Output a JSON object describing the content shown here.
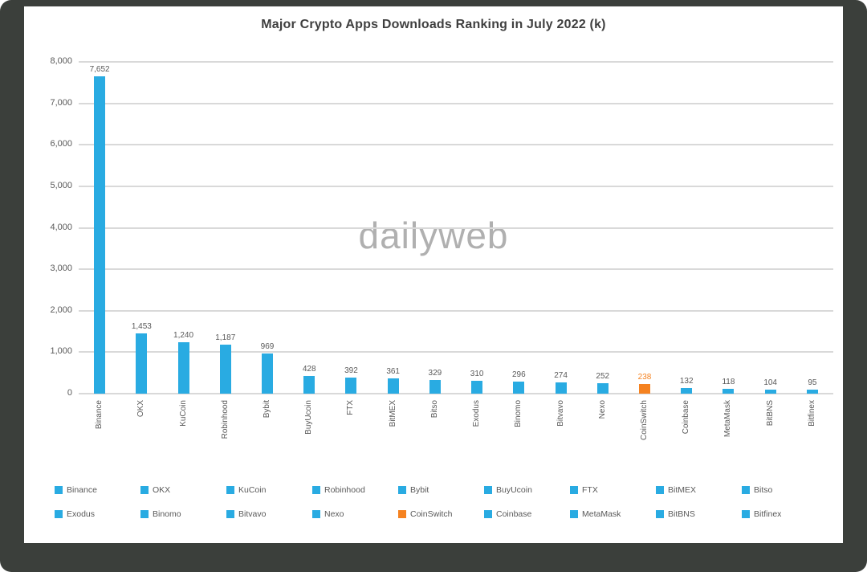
{
  "chart_data": {
    "type": "bar",
    "title": "Major Crypto Apps Downloads Ranking in July 2022 (k)",
    "watermark": "dailyweb",
    "xlabel": "",
    "ylabel": "",
    "ylim": [
      0,
      8000
    ],
    "ytick_step": 1000,
    "grid": true,
    "legend_position": "bottom",
    "categories": [
      "Binance",
      "OKX",
      "KuCoin",
      "Robinhood",
      "Bybit",
      "BuyUcoin",
      "FTX",
      "BitMEX",
      "Bitso",
      "Exodus",
      "Binomo",
      "Bitvavo",
      "Nexo",
      "CoinSwitch",
      "Coinbase",
      "MetaMask",
      "BitBNS",
      "Bitfinex"
    ],
    "values": [
      7652,
      1453,
      1240,
      1187,
      969,
      428,
      392,
      361,
      329,
      310,
      296,
      274,
      252,
      238,
      132,
      118,
      104,
      95
    ],
    "highlight_index": 13,
    "colors": {
      "bar": "#29abe2",
      "highlight": "#f58220",
      "grid": "#d9d9d9",
      "text": "#595959",
      "title": "#3f3f3f",
      "watermark": "#a3a3a3"
    }
  }
}
